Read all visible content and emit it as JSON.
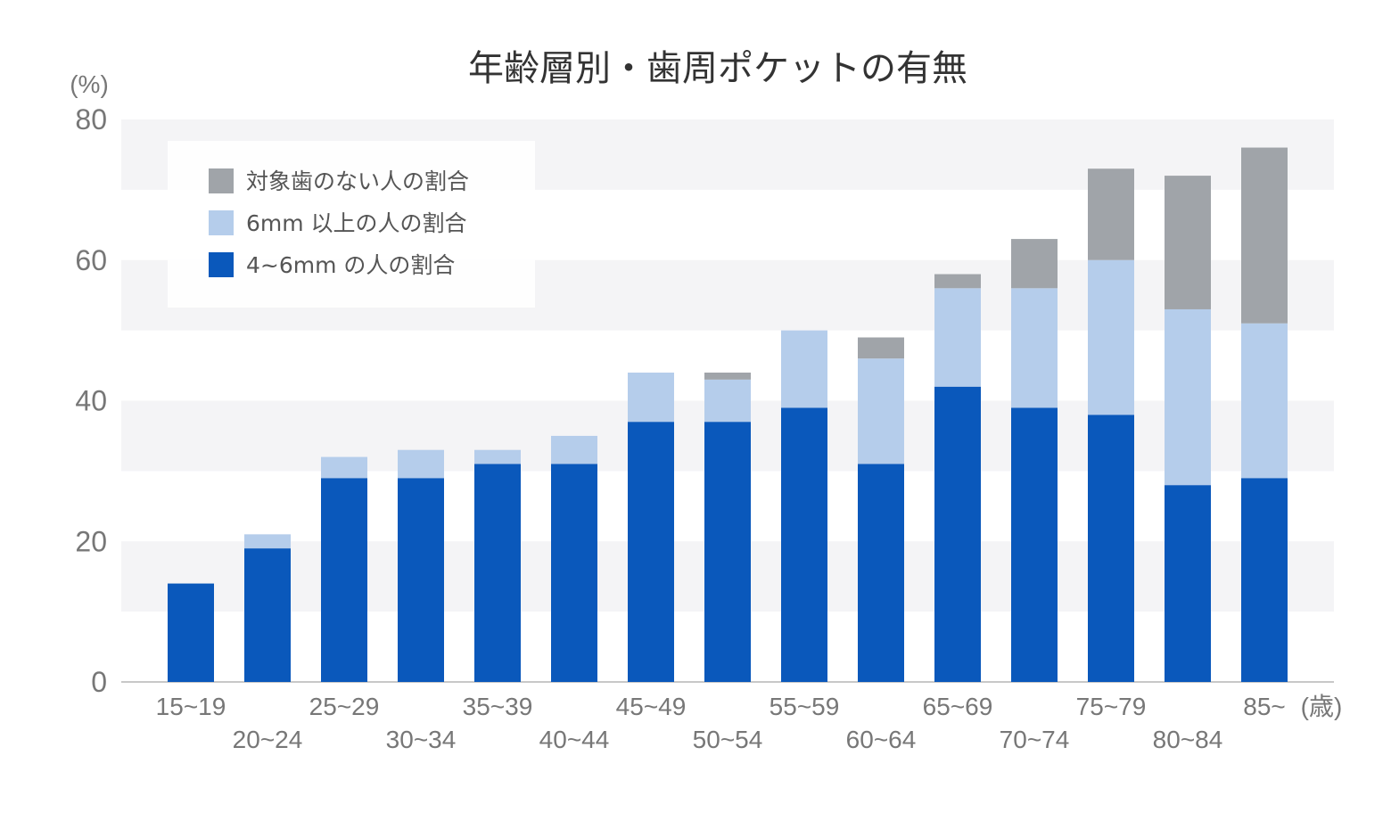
{
  "chart_data": {
    "type": "bar",
    "stacked": true,
    "title": "年齢層別・歯周ポケットの有無",
    "ylabel": "(%)",
    "xlabel": "(歳)",
    "ylim": [
      0,
      80
    ],
    "yticks": [
      "0",
      "20",
      "40",
      "60",
      "80"
    ],
    "grid": "alternating horizontal bands",
    "legend_position": "top-left",
    "categories": [
      "15~19",
      "20~24",
      "25~29",
      "30~34",
      "35~39",
      "40~44",
      "45~49",
      "50~54",
      "55~59",
      "60~64",
      "65~69",
      "70~74",
      "75~79",
      "80~84",
      "85~"
    ],
    "series": [
      {
        "name": "4~6mm の人の割合",
        "color": "#0a58bb",
        "values": [
          14,
          19,
          29,
          29,
          31,
          31,
          37,
          37,
          39,
          31,
          42,
          39,
          38,
          28,
          29
        ]
      },
      {
        "name": "6mm 以上の人の割合",
        "color": "#b5cdeb",
        "values": [
          0,
          2,
          3,
          4,
          2,
          4,
          7,
          6,
          11,
          15,
          14,
          17,
          22,
          25,
          22
        ]
      },
      {
        "name": "対象歯のない人の割合",
        "color": "#a0a4a9",
        "values": [
          0,
          0,
          0,
          0,
          0,
          0,
          0,
          1,
          0,
          3,
          2,
          7,
          13,
          19,
          25
        ]
      }
    ],
    "legend_order": [
      2,
      1,
      0
    ]
  }
}
